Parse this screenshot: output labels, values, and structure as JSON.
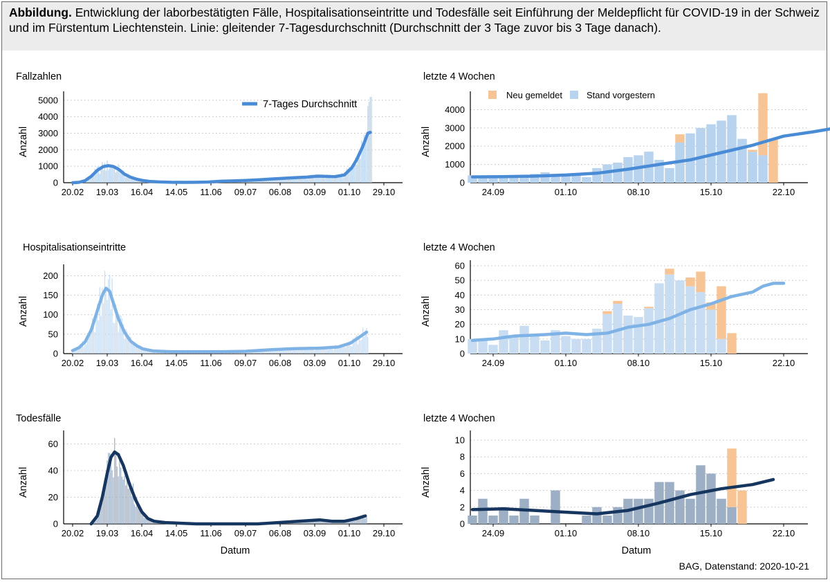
{
  "caption": {
    "lead": "Abbildung.",
    "text": "Entwicklung der laborbestätigten Fälle, Hospitalisationseintritte und Todesfälle seit Einführung der Meldepflicht für COVID-19 in der Schweiz und im Fürstentum Liechtenstein. Linie: gleitender 7-Tagesdurchschnitt (Durchschnitt der 3 Tage zuvor bis 3 Tage danach)."
  },
  "source": "BAG, Datenstand: 2020-10-21",
  "colors": {
    "cases": "#4A8BD6",
    "cases_bar": "#B7D3EE",
    "hosp": "#7FB3E5",
    "hosp_bar": "#C8DDF2",
    "deaths": "#16365F",
    "deaths_bar": "#9DAFC4",
    "neu_gemeldet": "#F7C595",
    "grid": "#bdbdbd"
  },
  "legend_main": {
    "label": "7-Tages Durchschnitt"
  },
  "legend_recent": {
    "neu": "Neu gemeldet",
    "stand": "Stand vorgestern"
  },
  "chart_data": [
    {
      "type": "bar",
      "title": "Fallzahlen",
      "xlabel": "",
      "ylabel": "Anzahl",
      "ylim": [
        0,
        5200
      ],
      "yticks": [
        0,
        1000,
        2000,
        3000,
        4000,
        5000
      ],
      "xticks": [
        "20.02",
        "19.03",
        "16.04",
        "14.05",
        "11.06",
        "09.07",
        "06.08",
        "03.09",
        "01.10",
        "29.10"
      ],
      "legend": "top-center",
      "grid": "horizontal dotted",
      "smooth_7day": [
        [
          0,
          0
        ],
        [
          5,
          20
        ],
        [
          10,
          120
        ],
        [
          15,
          380
        ],
        [
          20,
          750
        ],
        [
          25,
          980
        ],
        [
          29,
          1030
        ],
        [
          33,
          980
        ],
        [
          37,
          820
        ],
        [
          42,
          520
        ],
        [
          47,
          330
        ],
        [
          52,
          210
        ],
        [
          57,
          130
        ],
        [
          62,
          80
        ],
        [
          70,
          45
        ],
        [
          80,
          25
        ],
        [
          90,
          20
        ],
        [
          100,
          25
        ],
        [
          110,
          40
        ],
        [
          120,
          90
        ],
        [
          130,
          110
        ],
        [
          140,
          140
        ],
        [
          150,
          170
        ],
        [
          160,
          220
        ],
        [
          170,
          260
        ],
        [
          180,
          300
        ],
        [
          190,
          340
        ],
        [
          198,
          400
        ],
        [
          205,
          380
        ],
        [
          212,
          360
        ],
        [
          220,
          470
        ],
        [
          226,
          900
        ],
        [
          230,
          1400
        ],
        [
          235,
          2200
        ],
        [
          239,
          3000
        ],
        [
          241,
          3050
        ]
      ]
    },
    {
      "type": "bar",
      "title": "letzte 4 Wochen",
      "ylabel": "Anzahl",
      "ylim": [
        0,
        4700
      ],
      "yticks": [
        0,
        1000,
        2000,
        3000,
        4000
      ],
      "xticks": [
        "24.09",
        "01.10",
        "08.10",
        "15.10",
        "22.10"
      ],
      "legend": "top",
      "grid": "horizontal dotted",
      "stand_vorgestern": [
        400,
        300,
        290,
        270,
        400,
        430,
        480,
        570,
        480,
        500,
        520,
        300,
        800,
        1000,
        1100,
        1400,
        1500,
        1700,
        1250,
        800,
        2200,
        2700,
        3000,
        3200,
        3400,
        3700,
        2400,
        1700,
        1500,
        0
      ],
      "neu_gemeldet": [
        0,
        0,
        0,
        0,
        0,
        0,
        0,
        0,
        0,
        0,
        0,
        0,
        0,
        0,
        0,
        0,
        0,
        0,
        0,
        0,
        450,
        0,
        0,
        0,
        0,
        0,
        0,
        100,
        3400,
        2400
      ],
      "smooth_7day": [
        [
          0,
          320
        ],
        [
          3,
          330
        ],
        [
          6,
          360
        ],
        [
          9,
          420
        ],
        [
          12,
          520
        ],
        [
          15,
          740
        ],
        [
          18,
          1000
        ],
        [
          21,
          1250
        ],
        [
          24,
          1650
        ],
        [
          27,
          2050
        ],
        [
          30,
          2550
        ],
        [
          33,
          2800
        ],
        [
          35,
          3000
        ],
        [
          36,
          3100
        ]
      ]
    },
    {
      "type": "bar",
      "title": "Hospitalisationseintritte",
      "xlabel": "",
      "ylabel": "Anzahl",
      "ylim": [
        0,
        215
      ],
      "yticks": [
        0,
        50,
        100,
        150,
        200
      ],
      "xticks": [
        "20.02",
        "19.03",
        "16.04",
        "14.05",
        "11.06",
        "09.07",
        "06.08",
        "03.09",
        "01.10",
        "29.10"
      ],
      "grid": "horizontal dotted",
      "smooth_7day": [
        [
          0,
          8
        ],
        [
          5,
          15
        ],
        [
          10,
          30
        ],
        [
          15,
          60
        ],
        [
          20,
          110
        ],
        [
          24,
          150
        ],
        [
          27,
          168
        ],
        [
          30,
          160
        ],
        [
          33,
          130
        ],
        [
          37,
          90
        ],
        [
          42,
          55
        ],
        [
          47,
          32
        ],
        [
          52,
          20
        ],
        [
          57,
          12
        ],
        [
          65,
          7
        ],
        [
          80,
          5
        ],
        [
          100,
          5
        ],
        [
          120,
          5
        ],
        [
          140,
          6
        ],
        [
          160,
          10
        ],
        [
          180,
          13
        ],
        [
          200,
          14
        ],
        [
          215,
          17
        ],
        [
          225,
          27
        ],
        [
          232,
          42
        ],
        [
          238,
          55
        ]
      ]
    },
    {
      "type": "bar",
      "title": "letzte 4 Wochen",
      "ylabel": "Anzahl",
      "ylim": [
        0,
        60
      ],
      "yticks": [
        0,
        10,
        20,
        30,
        40,
        50,
        60
      ],
      "xticks": [
        "24.09",
        "01.10",
        "08.10",
        "15.10",
        "22.10"
      ],
      "grid": "horizontal dotted",
      "stand_vorgestern": [
        10,
        9,
        6,
        16,
        12,
        19,
        12,
        9,
        16,
        12,
        10,
        10,
        17,
        27,
        34,
        26,
        25,
        31,
        48,
        54,
        50,
        46,
        42,
        30,
        10,
        0
      ],
      "neu_gemeldet": [
        0,
        0,
        0,
        0,
        0,
        0,
        0,
        0,
        0,
        0,
        0,
        0,
        0,
        2,
        2,
        0,
        0,
        1,
        0,
        4,
        0,
        6,
        14,
        5,
        36,
        14
      ],
      "smooth_7day": [
        [
          0,
          9
        ],
        [
          2,
          10
        ],
        [
          4,
          12
        ],
        [
          7,
          13
        ],
        [
          9,
          14
        ],
        [
          11,
          13
        ],
        [
          13,
          14
        ],
        [
          15,
          18
        ],
        [
          17,
          20
        ],
        [
          19,
          24
        ],
        [
          21,
          30
        ],
        [
          23,
          34
        ],
        [
          25,
          39
        ],
        [
          27,
          42
        ],
        [
          28,
          46
        ],
        [
          29,
          48
        ],
        [
          30,
          48
        ]
      ]
    },
    {
      "type": "bar",
      "title": "Todesfälle",
      "xlabel": "Datum",
      "ylabel": "Anzahl",
      "ylim": [
        0,
        66
      ],
      "yticks": [
        0,
        20,
        40,
        60
      ],
      "xticks": [
        "20.02",
        "19.03",
        "16.04",
        "14.05",
        "11.06",
        "09.07",
        "06.08",
        "03.09",
        "01.10",
        "29.10"
      ],
      "grid": "horizontal dotted",
      "smooth_7day": [
        [
          15,
          0
        ],
        [
          20,
          6
        ],
        [
          24,
          20
        ],
        [
          28,
          38
        ],
        [
          31,
          50
        ],
        [
          34,
          54
        ],
        [
          37,
          52
        ],
        [
          41,
          44
        ],
        [
          46,
          30
        ],
        [
          51,
          18
        ],
        [
          56,
          9
        ],
        [
          61,
          4
        ],
        [
          66,
          2
        ],
        [
          75,
          1
        ],
        [
          100,
          0
        ],
        [
          150,
          0
        ],
        [
          200,
          3
        ],
        [
          210,
          2
        ],
        [
          220,
          2
        ],
        [
          230,
          4
        ],
        [
          237,
          6
        ]
      ]
    },
    {
      "type": "bar",
      "title": "letzte 4 Wochen",
      "xlabel": "Datum",
      "ylabel": "Anzahl",
      "ylim": [
        0,
        10.5
      ],
      "yticks": [
        0,
        2,
        4,
        6,
        8,
        10
      ],
      "xticks": [
        "24.09",
        "01.10",
        "08.10",
        "15.10",
        "22.10"
      ],
      "grid": "horizontal dotted",
      "stand_vorgestern": [
        1,
        3,
        1,
        2,
        1,
        3,
        1,
        0,
        4,
        0,
        0,
        1,
        2,
        1,
        2,
        3,
        3,
        3,
        5,
        5,
        4,
        3,
        7,
        6,
        3,
        2,
        0
      ],
      "neu_gemeldet": [
        0,
        0,
        0,
        0,
        0,
        0,
        0,
        0,
        0,
        0,
        0,
        0,
        0,
        0,
        0,
        0,
        0,
        0,
        0,
        0,
        0,
        0,
        0,
        0,
        0,
        7,
        4
      ],
      "smooth_7day": [
        [
          0,
          1.7
        ],
        [
          3,
          1.8
        ],
        [
          6,
          1.6
        ],
        [
          9,
          1.4
        ],
        [
          12,
          1.2
        ],
        [
          15,
          1.6
        ],
        [
          18,
          2.5
        ],
        [
          21,
          3.5
        ],
        [
          24,
          4.2
        ],
        [
          27,
          4.7
        ],
        [
          29,
          5.3
        ]
      ]
    }
  ]
}
